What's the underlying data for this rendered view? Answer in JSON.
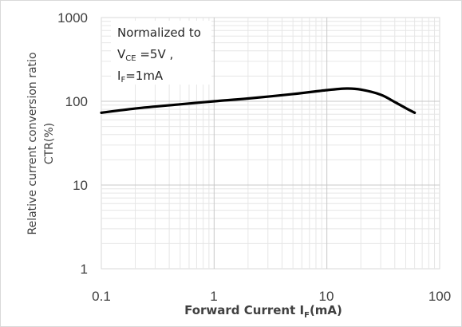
{
  "chart_data": {
    "type": "line",
    "x_scale": "log",
    "y_scale": "log",
    "xlim": [
      0.1,
      100
    ],
    "ylim": [
      1,
      1000
    ],
    "xticks": [
      "0.1",
      "1",
      "10",
      "100"
    ],
    "yticks": [
      "1",
      "10",
      "100",
      "1000"
    ],
    "xlabel": {
      "main": "Forward Current I",
      "sub": "F",
      "tail": "(mA)"
    },
    "ylabel": {
      "line1": "Relative current conversion ratio",
      "line2": "CTR(%)"
    },
    "grid": true,
    "annotation": {
      "line1": "Normalized to",
      "line2": {
        "main": "V",
        "sub": "CE",
        "tail": " =5V ,"
      },
      "line3": {
        "main": "I",
        "sub": "F",
        "tail": "=1mA"
      }
    },
    "series": [
      {
        "color": "#000000",
        "x": [
          0.1,
          0.2,
          0.5,
          1,
          2,
          5,
          10,
          15,
          20,
          30,
          40,
          50,
          60
        ],
        "y": [
          73,
          82,
          92,
          100,
          108,
          122,
          136,
          142,
          138,
          120,
          98,
          83,
          73
        ]
      }
    ]
  }
}
